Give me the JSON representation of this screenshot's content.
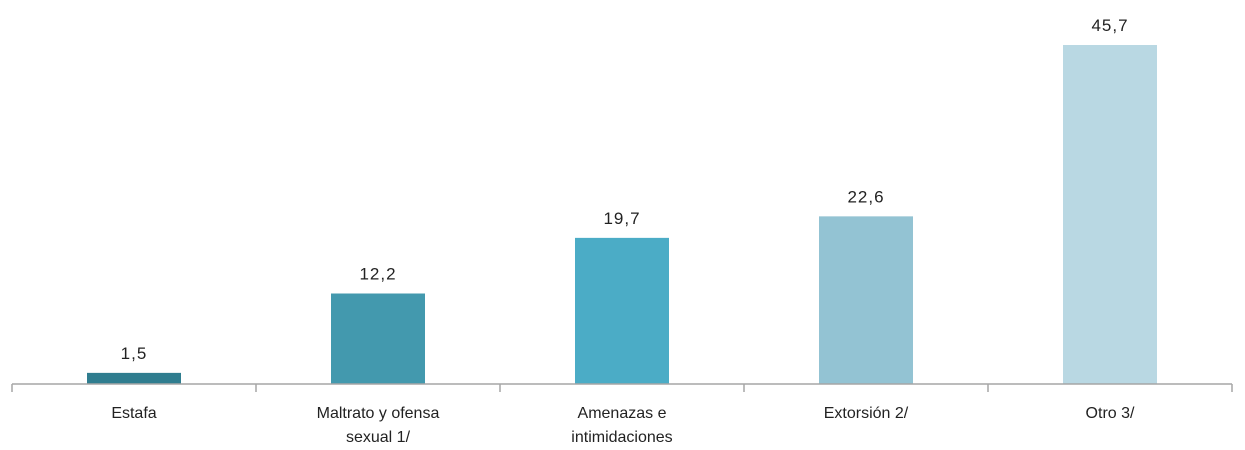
{
  "chart_data": {
    "type": "bar",
    "title": "",
    "xlabel": "",
    "ylabel": "",
    "categories": [
      [
        "Estafa"
      ],
      [
        "Maltrato y ofensa",
        "sexual 1/"
      ],
      [
        "Amenazas e",
        "intimidaciones"
      ],
      [
        "Extorsión 2/"
      ],
      [
        "Otro 3/"
      ]
    ],
    "values": [
      1.5,
      12.2,
      19.7,
      22.6,
      45.7
    ],
    "value_labels": [
      "1,5",
      "12,2",
      "19,7",
      "22,6",
      "45,7"
    ],
    "colors": [
      "#2f7d8f",
      "#4399ae",
      "#4bacc6",
      "#93c3d3",
      "#b9d8e3"
    ],
    "ylim": [
      0,
      45.7
    ],
    "grid": false,
    "legend": "none",
    "axis_color": "#a6a6a6"
  }
}
